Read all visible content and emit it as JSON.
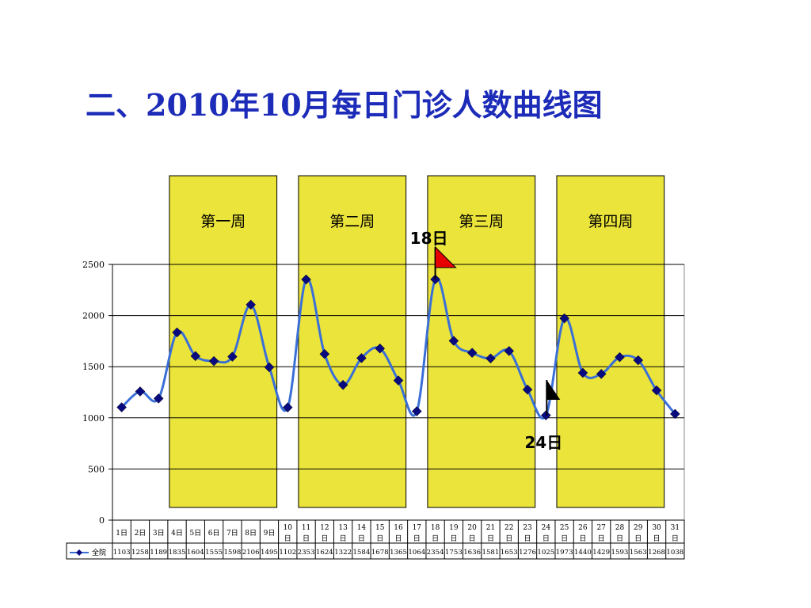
{
  "title": "二、2010年10月每日门诊人数曲线图",
  "weeks": [
    {
      "label": "第一周",
      "from": 4,
      "to": 9
    },
    {
      "label": "第二周",
      "from": 11,
      "to": 16
    },
    {
      "label": "第三周",
      "from": 18,
      "to": 23
    },
    {
      "label": "第四周",
      "from": 25,
      "to": 30
    }
  ],
  "annotations": {
    "peak_label": "18日",
    "peak_day": 18,
    "low_label": "24日",
    "low_day": 24
  },
  "colors": {
    "title": "#1c2bb8",
    "week_band": "#ebe43a",
    "line": "#3a6fd8",
    "marker": "#0a0a80",
    "flag": "#e60000"
  },
  "chart_data": {
    "type": "line",
    "title": "",
    "xlabel": "",
    "ylabel": "",
    "ylim": [
      0,
      2500
    ],
    "yticks": [
      "0",
      "500",
      "1000",
      "1500",
      "2000",
      "2500"
    ],
    "grid": true,
    "categories": [
      "1日",
      "2日",
      "3日",
      "4日",
      "5日",
      "6日",
      "7日",
      "8日",
      "9日",
      "10日",
      "11日",
      "12日",
      "13日",
      "14日",
      "15日",
      "16日",
      "17日",
      "18日",
      "19日",
      "20日",
      "21日",
      "22日",
      "23日",
      "24日",
      "25日",
      "26日",
      "27日",
      "28日",
      "29日",
      "30日",
      "31日"
    ],
    "series": [
      {
        "name": "全院",
        "values": [
          1103,
          1258,
          1189,
          1835,
          1604,
          1555,
          1598,
          2106,
          1495,
          1102,
          2353,
          1624,
          1322,
          1584,
          1678,
          1365,
          1064,
          2354,
          1753,
          1636,
          1581,
          1653,
          1276,
          1025,
          1973,
          1440,
          1429,
          1593,
          1563,
          1268,
          1038
        ]
      }
    ]
  }
}
